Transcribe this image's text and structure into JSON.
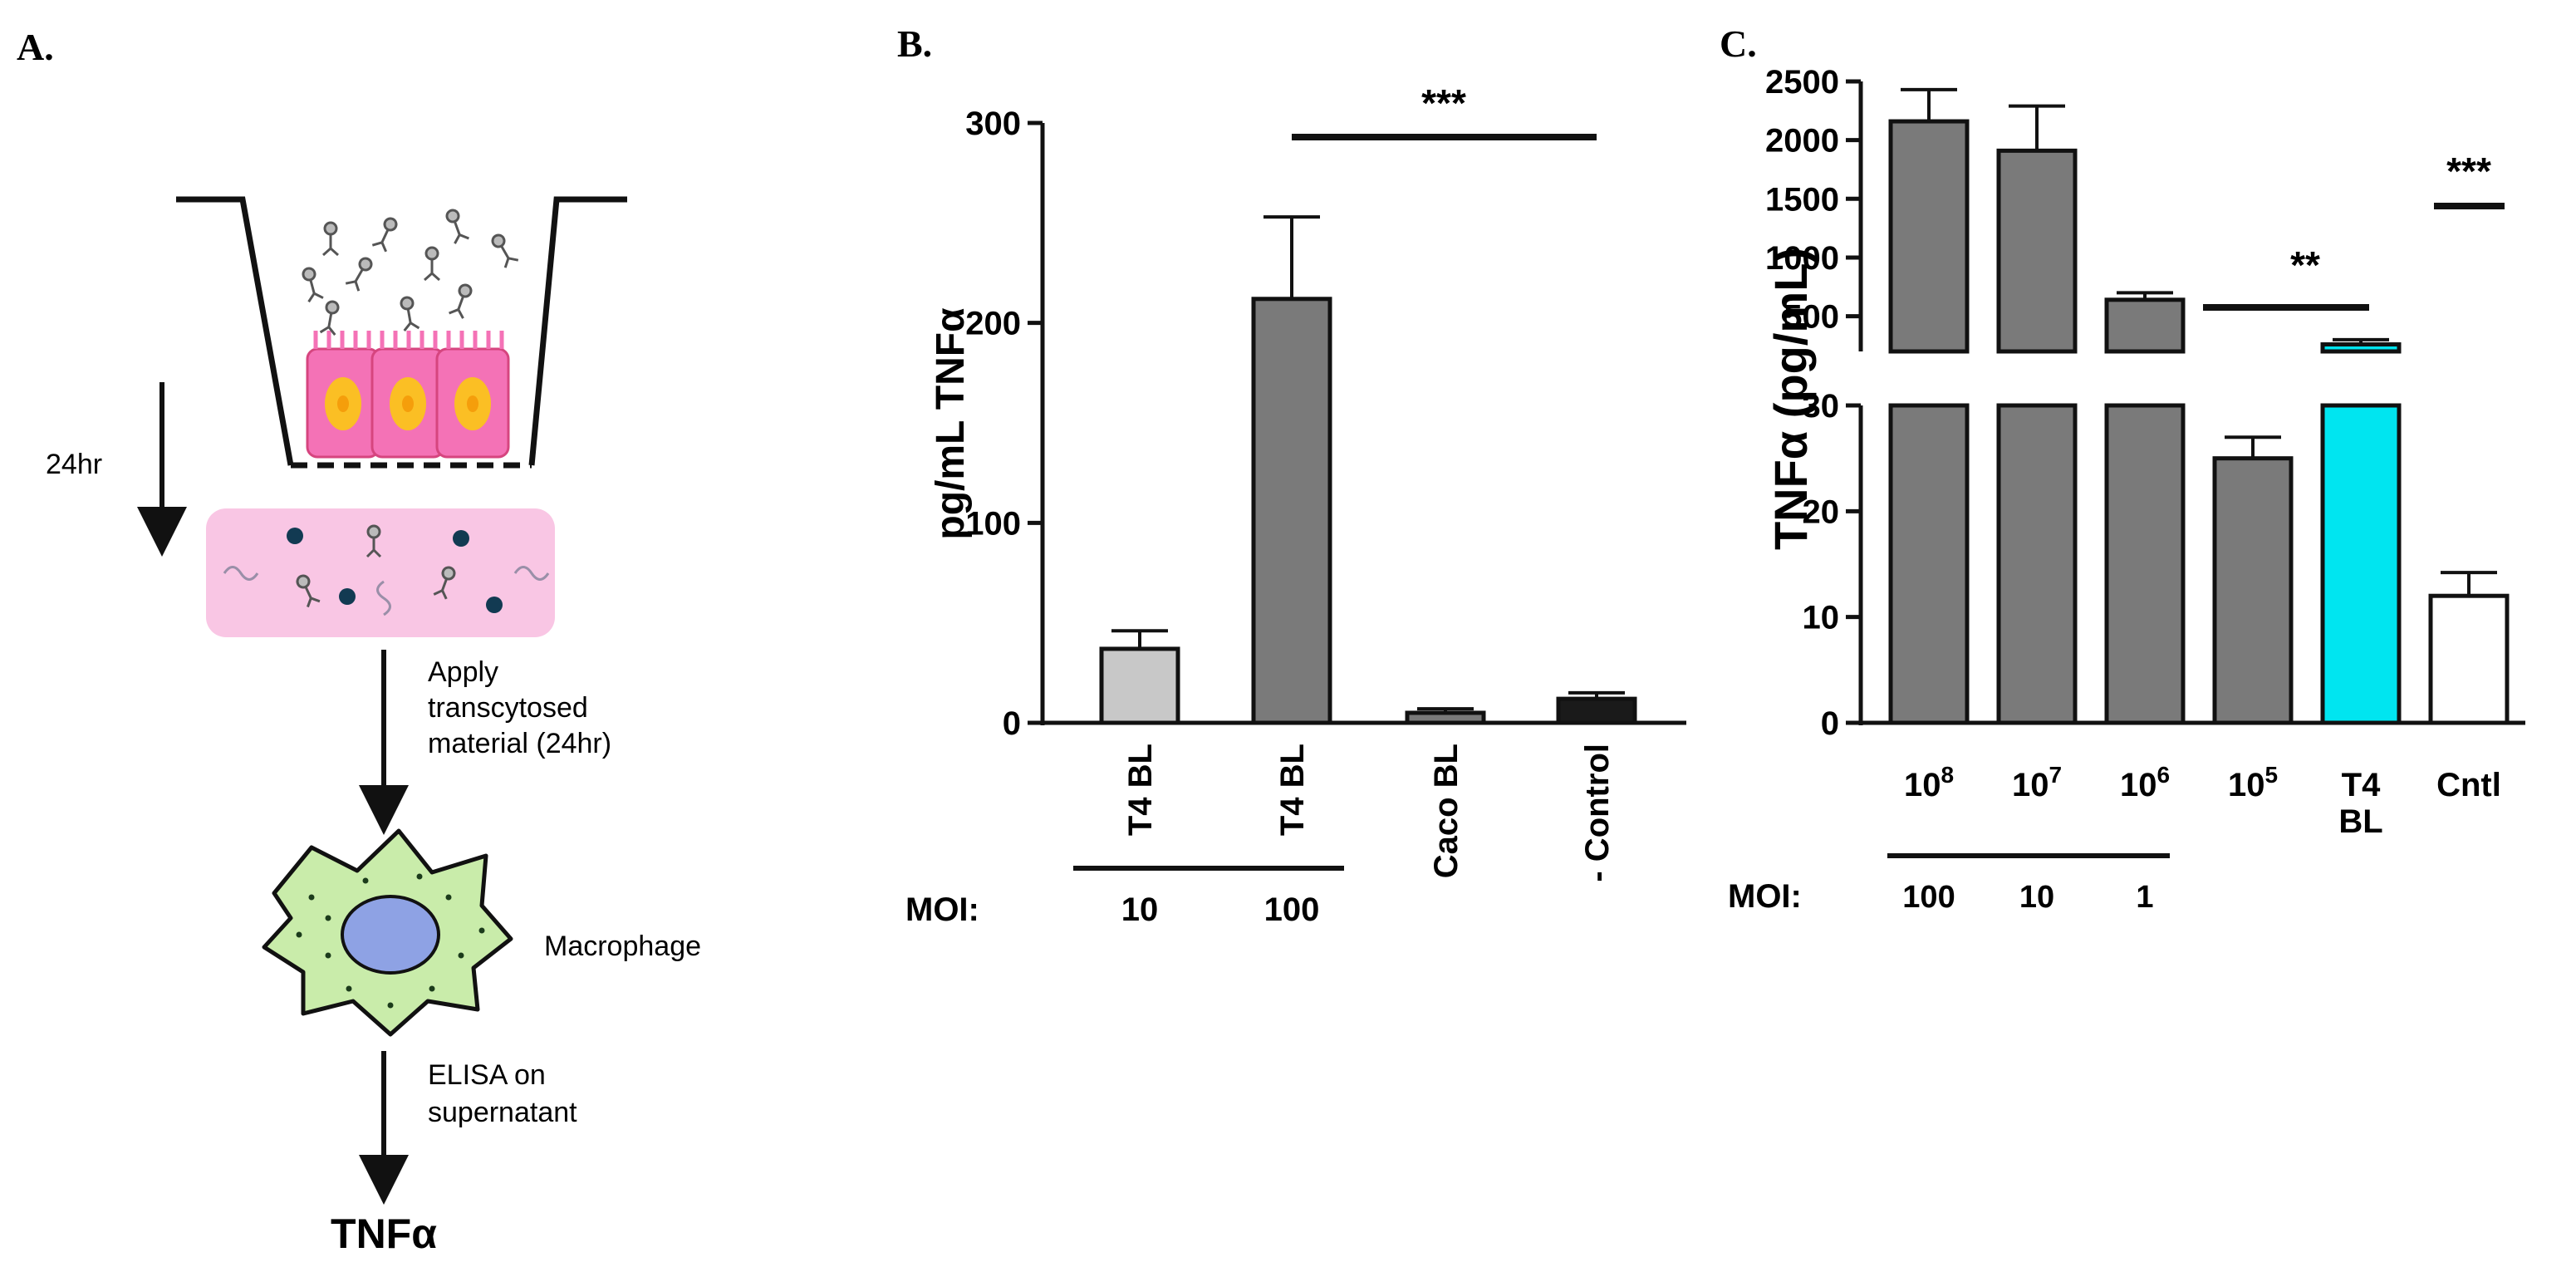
{
  "panels": {
    "a": {
      "letter": "A.",
      "step1_time": "24hr",
      "step2_label_line1": "Apply",
      "step2_label_line2": "transcytosed",
      "step2_label_line3": "material (24hr)",
      "cell_label": "Macrophage",
      "step3_label_line1": "ELISA on",
      "step3_label_line2": "supernatant",
      "readout": "TNFα",
      "colors": {
        "epithelium": "#f472b6",
        "nucleus": "#fbbf24",
        "medium": "#f9c6e4",
        "macrophage": "#c9ecaa",
        "macrophage_nucleus": "#8ea2e4"
      }
    },
    "b": {
      "letter": "B."
    },
    "c": {
      "letter": "C."
    }
  },
  "chart_data": [
    {
      "type": "bar",
      "panel": "B.",
      "ylabel": "pg/mL TNFα",
      "ylim": [
        0,
        300
      ],
      "yticks": [
        "0",
        "100",
        "200",
        "300"
      ],
      "categories": [
        "T4 BL",
        "T4 BL",
        "Caco BL",
        "- Control"
      ],
      "values": [
        37,
        212,
        5,
        12
      ],
      "errors": [
        9,
        41,
        2,
        3
      ],
      "colors": [
        "#c8c8c8",
        "#7a7a7a",
        "#7a7a7a",
        "#1a1a1a"
      ],
      "group_label": "MOI:",
      "group_values": [
        "10",
        "100"
      ],
      "significance": "***"
    },
    {
      "type": "bar",
      "panel": "C.",
      "ylabel": "TNFα (pg/mL)",
      "broken_axis": true,
      "ylim_lower": [
        0,
        30
      ],
      "ylim_upper": [
        200,
        2500
      ],
      "yticks_lower": [
        "0",
        "10",
        "20",
        "30"
      ],
      "yticks_upper": [
        "500",
        "1000",
        "1500",
        "2000",
        "2500"
      ],
      "categories": [
        "10",
        "10",
        "10",
        "10",
        "T4 BL",
        "Cntl"
      ],
      "exponents": [
        "8",
        "7",
        "6",
        "5",
        "",
        ""
      ],
      "values": [
        2160,
        1910,
        640,
        25,
        260,
        12
      ],
      "errors": [
        270,
        380,
        60,
        2,
        40,
        2.2
      ],
      "colors": [
        "#7a7a7a",
        "#7a7a7a",
        "#7a7a7a",
        "#7a7a7a",
        "#00e5f0",
        "#ffffff"
      ],
      "group_label": "MOI:",
      "group_values": [
        "100",
        "10",
        "1"
      ],
      "significance": [
        "**",
        "***"
      ]
    }
  ]
}
